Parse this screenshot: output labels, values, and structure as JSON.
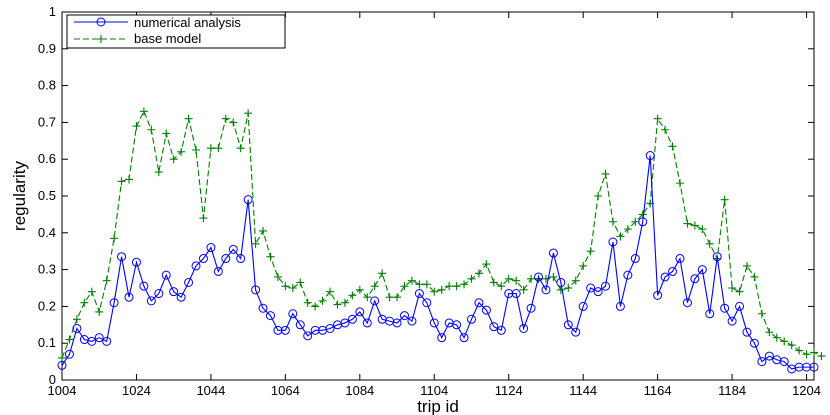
{
  "chart_data": {
    "type": "line",
    "xlabel": "trip id",
    "ylabel": "regularity",
    "xlim": [
      1004,
      1206
    ],
    "ylim": [
      0,
      1
    ],
    "xticks": [
      1004,
      1024,
      1044,
      1064,
      1084,
      1104,
      1124,
      1144,
      1164,
      1184,
      1204
    ],
    "yticks": [
      0,
      0.1,
      0.2,
      0.3,
      0.4,
      0.5,
      0.6,
      0.7,
      0.8,
      0.9,
      1
    ],
    "ytick_labels": [
      "0",
      "0.1",
      "0.2",
      "0.3",
      "0.4",
      "0.5",
      "0.6",
      "0.7",
      "0.8",
      "0.9",
      "1"
    ],
    "grid": false,
    "legend_position": "top-left",
    "series": [
      {
        "name": "numerical analysis",
        "color": "#0000ff",
        "line_style": "solid",
        "marker": "circle",
        "x_start": 1004,
        "x_step": 2,
        "values": [
          0.04,
          0.07,
          0.14,
          0.11,
          0.105,
          0.115,
          0.105,
          0.21,
          0.335,
          0.225,
          0.32,
          0.255,
          0.215,
          0.235,
          0.285,
          0.24,
          0.225,
          0.265,
          0.31,
          0.33,
          0.36,
          0.295,
          0.33,
          0.355,
          0.33,
          0.49,
          0.245,
          0.195,
          0.175,
          0.135,
          0.135,
          0.18,
          0.15,
          0.12,
          0.135,
          0.135,
          0.14,
          0.15,
          0.155,
          0.165,
          0.185,
          0.155,
          0.215,
          0.165,
          0.16,
          0.155,
          0.175,
          0.16,
          0.235,
          0.21,
          0.155,
          0.115,
          0.155,
          0.15,
          0.115,
          0.165,
          0.21,
          0.19,
          0.145,
          0.135,
          0.235,
          0.235,
          0.14,
          0.195,
          0.28,
          0.245,
          0.345,
          0.265,
          0.15,
          0.13,
          0.2,
          0.25,
          0.24,
          0.255,
          0.375,
          0.2,
          0.285,
          0.33,
          0.43,
          0.61,
          0.23,
          0.28,
          0.295,
          0.33,
          0.21,
          0.275,
          0.3,
          0.18,
          0.335,
          0.195,
          0.16,
          0.2,
          0.13,
          0.1,
          0.05,
          0.065,
          0.055,
          0.05,
          0.03,
          0.035,
          0.035,
          0.035
        ]
      },
      {
        "name": "base model",
        "color": "#008000",
        "line_style": "dashed",
        "marker": "plus",
        "x_start": 1004,
        "x_step": 2,
        "values": [
          0.06,
          0.11,
          0.165,
          0.21,
          0.24,
          0.185,
          0.27,
          0.385,
          0.54,
          0.545,
          0.69,
          0.73,
          0.68,
          0.565,
          0.67,
          0.6,
          0.62,
          0.71,
          0.625,
          0.44,
          0.63,
          0.63,
          0.71,
          0.7,
          0.63,
          0.725,
          0.37,
          0.405,
          0.335,
          0.28,
          0.255,
          0.25,
          0.265,
          0.21,
          0.2,
          0.215,
          0.24,
          0.205,
          0.21,
          0.23,
          0.245,
          0.225,
          0.255,
          0.29,
          0.225,
          0.225,
          0.255,
          0.27,
          0.26,
          0.26,
          0.24,
          0.245,
          0.255,
          0.255,
          0.26,
          0.275,
          0.29,
          0.315,
          0.265,
          0.255,
          0.275,
          0.27,
          0.245,
          0.275,
          0.275,
          0.275,
          0.28,
          0.245,
          0.25,
          0.27,
          0.31,
          0.35,
          0.5,
          0.56,
          0.43,
          0.39,
          0.41,
          0.43,
          0.45,
          0.48,
          0.71,
          0.68,
          0.635,
          0.535,
          0.425,
          0.42,
          0.41,
          0.37,
          0.33,
          0.49,
          0.25,
          0.24,
          0.31,
          0.28,
          0.18,
          0.13,
          0.115,
          0.105,
          0.095,
          0.08,
          0.07,
          0.075,
          0.065
        ]
      }
    ]
  }
}
